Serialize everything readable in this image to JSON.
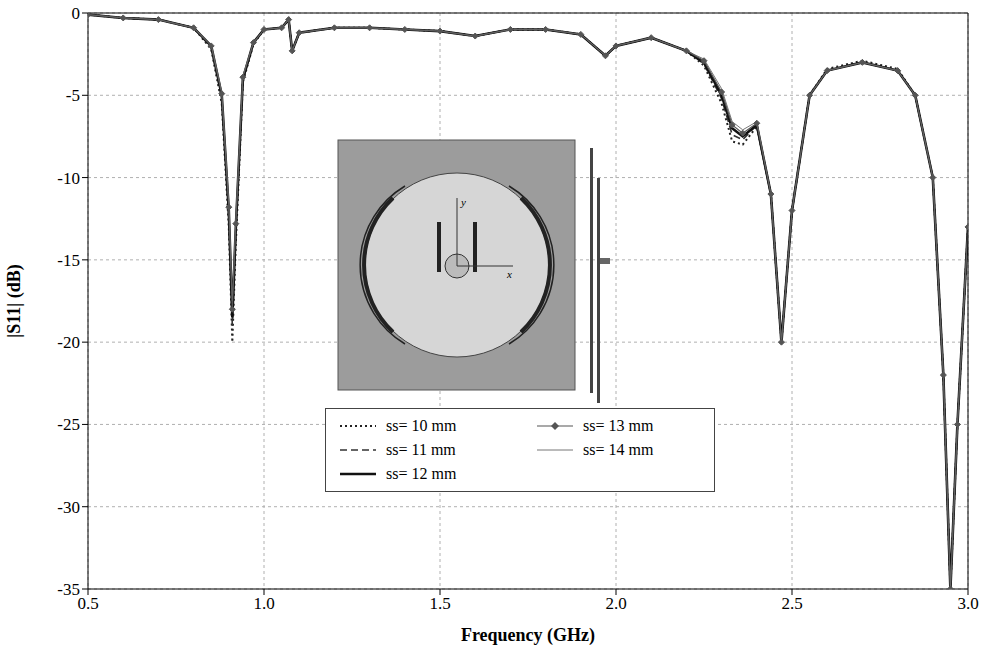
{
  "chart_data": {
    "type": "line",
    "x_label": "Frequency (GHz)",
    "y_label": "|S11| (dB)",
    "annotations": [
      "y",
      "x"
    ],
    "x": [
      0.5,
      0.6,
      0.7,
      0.8,
      0.85,
      0.88,
      0.9,
      0.91,
      0.92,
      0.94,
      0.97,
      1.0,
      1.05,
      1.07,
      1.08,
      1.1,
      1.2,
      1.3,
      1.4,
      1.5,
      1.6,
      1.7,
      1.8,
      1.9,
      1.97,
      2.0,
      2.1,
      2.2,
      2.25,
      2.3,
      2.33,
      2.36,
      2.4,
      2.44,
      2.47,
      2.5,
      2.55,
      2.6,
      2.7,
      2.8,
      2.85,
      2.9,
      2.93,
      2.95,
      2.97,
      3.0
    ],
    "series": [
      {
        "name": "ss= 10 mm",
        "color": "#222222",
        "line_style": "dotted",
        "values": [
          -0.1,
          -0.3,
          -0.4,
          -0.9,
          -2.2,
          -5.5,
          -13,
          -20,
          -14,
          -4.2,
          -1.9,
          -1.0,
          -0.9,
          -0.4,
          -2.3,
          -1.2,
          -0.9,
          -0.9,
          -1.0,
          -1.1,
          -1.4,
          -1.0,
          -1.0,
          -1.3,
          -2.6,
          -2.0,
          -1.5,
          -2.3,
          -3.2,
          -5.5,
          -7.8,
          -8.0,
          -6.9,
          -11,
          -20,
          -12,
          -5,
          -3.4,
          -2.9,
          -3.4,
          -5,
          -10,
          -22,
          -35,
          -25,
          -13
        ]
      },
      {
        "name": "ss= 11 mm",
        "color": "#333333",
        "line_style": "dashed",
        "values": [
          -0.1,
          -0.3,
          -0.4,
          -0.9,
          -2.1,
          -5.2,
          -12.5,
          -19,
          -13.5,
          -4.1,
          -1.8,
          -1.0,
          -0.9,
          -0.4,
          -2.3,
          -1.2,
          -0.9,
          -0.9,
          -1.0,
          -1.1,
          -1.4,
          -1.0,
          -1.0,
          -1.3,
          -2.6,
          -2.0,
          -1.5,
          -2.3,
          -3.1,
          -5.2,
          -7.4,
          -7.7,
          -6.8,
          -11,
          -20,
          -12,
          -5,
          -3.5,
          -3.0,
          -3.5,
          -5,
          -10,
          -22,
          -35,
          -25,
          -13
        ]
      },
      {
        "name": "ss= 12 mm",
        "color": "#111111",
        "line_style": "bold",
        "values": [
          -0.1,
          -0.3,
          -0.4,
          -0.9,
          -2.0,
          -5.0,
          -12,
          -18.5,
          -13,
          -4,
          -1.8,
          -1.0,
          -0.9,
          -0.4,
          -2.3,
          -1.2,
          -0.9,
          -0.9,
          -1.0,
          -1.1,
          -1.4,
          -1.0,
          -1.0,
          -1.3,
          -2.6,
          -2.0,
          -1.5,
          -2.3,
          -3.0,
          -5.0,
          -7.0,
          -7.5,
          -6.8,
          -11,
          -20,
          -12,
          -5,
          -3.5,
          -3.0,
          -3.5,
          -5,
          -10,
          -22,
          -35,
          -25,
          -13
        ]
      },
      {
        "name": "ss= 13 mm",
        "color": "#555555",
        "line_style": "solid",
        "marker": "diamond",
        "values": [
          -0.1,
          -0.3,
          -0.4,
          -0.9,
          -2.0,
          -4.9,
          -11.8,
          -18,
          -12.8,
          -3.9,
          -1.8,
          -1.0,
          -0.9,
          -0.4,
          -2.3,
          -1.2,
          -0.9,
          -0.9,
          -1.0,
          -1.1,
          -1.4,
          -1.0,
          -1.0,
          -1.3,
          -2.6,
          -2.0,
          -1.5,
          -2.3,
          -2.9,
          -4.8,
          -6.8,
          -7.3,
          -6.7,
          -11,
          -20,
          -12,
          -5,
          -3.5,
          -3.0,
          -3.5,
          -5,
          -10,
          -22,
          -35,
          -25,
          -13
        ]
      },
      {
        "name": "ss= 14 mm",
        "color": "#666666",
        "line_style": "thin",
        "values": [
          -0.1,
          -0.3,
          -0.4,
          -0.9,
          -1.9,
          -4.8,
          -11.5,
          -17.5,
          -12.5,
          -3.8,
          -1.8,
          -1.0,
          -0.9,
          -0.4,
          -2.3,
          -1.2,
          -0.9,
          -0.9,
          -1.0,
          -1.1,
          -1.4,
          -1.0,
          -1.0,
          -1.3,
          -2.6,
          -2.0,
          -1.5,
          -2.3,
          -2.8,
          -4.6,
          -6.6,
          -7.1,
          -6.6,
          -11,
          -20,
          -12,
          -5,
          -3.5,
          -3.0,
          -3.5,
          -5,
          -10,
          -22,
          -35,
          -25,
          -13
        ]
      }
    ],
    "xlim": [
      0.5,
      3.0
    ],
    "xticks": [
      0.5,
      {
        "value": 1,
        "label": "1.0"
      },
      1.5,
      {
        "value": 2,
        "label": "2.0"
      },
      2.5,
      {
        "value": 3,
        "label": "3.0"
      }
    ],
    "ylim": [
      -35,
      0
    ],
    "yticks": [
      0,
      -5,
      -10,
      -15,
      -20,
      -25,
      -30,
      -35
    ],
    "grid": true,
    "legend": "bottom"
  }
}
